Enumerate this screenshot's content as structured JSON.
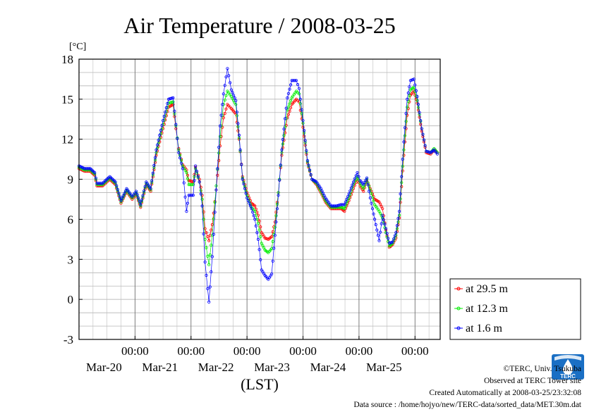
{
  "chart_data": {
    "type": "line",
    "title": "Air Temperature / 2008-03-25",
    "y_unit": "[°C]",
    "xlabel": "(LST)",
    "ylim": [
      -3,
      18
    ],
    "yticks": [
      -3,
      0,
      3,
      6,
      9,
      12,
      15,
      18
    ],
    "x_range_days": [
      0,
      6
    ],
    "x_tick_labels": [
      {
        "time": "00:00",
        "date": "Mar-20",
        "x": 1
      },
      {
        "time": "00:00",
        "date": "Mar-21",
        "x": 2
      },
      {
        "time": "00:00",
        "date": "Mar-22",
        "x": 3
      },
      {
        "time": "00:00",
        "date": "Mar-23",
        "x": 4
      },
      {
        "time": "00:00",
        "date": "Mar-24",
        "x": 5
      },
      {
        "time": "00:00",
        "date": "Mar-25",
        "x": 6
      }
    ],
    "grid": true,
    "legend_position": "bottom-right, outside plot",
    "series": [
      {
        "name": "at 29.5 m",
        "color": "#ff0000",
        "points": [
          [
            0,
            9.8
          ],
          [
            0.1,
            9.6
          ],
          [
            0.2,
            9.6
          ],
          [
            0.28,
            9.3
          ],
          [
            0.32,
            8.5
          ],
          [
            0.42,
            8.5
          ],
          [
            0.55,
            9.0
          ],
          [
            0.65,
            8.6
          ],
          [
            0.75,
            7.2
          ],
          [
            0.85,
            8.1
          ],
          [
            0.95,
            7.5
          ],
          [
            1.02,
            7.9
          ],
          [
            1.1,
            6.9
          ],
          [
            1.2,
            8.6
          ],
          [
            1.28,
            8.1
          ],
          [
            1.38,
            10.8
          ],
          [
            1.5,
            12.8
          ],
          [
            1.6,
            14.4
          ],
          [
            1.68,
            14.6
          ],
          [
            1.73,
            12.8
          ],
          [
            1.78,
            11.3
          ],
          [
            1.85,
            10.1
          ],
          [
            1.92,
            9.7
          ],
          [
            1.96,
            8.9
          ],
          [
            2.04,
            8.8
          ],
          [
            2.08,
            9.9
          ],
          [
            2.15,
            9.0
          ],
          [
            2.2,
            7.8
          ],
          [
            2.25,
            5.3
          ],
          [
            2.32,
            4.4
          ],
          [
            2.38,
            5.6
          ],
          [
            2.45,
            8.2
          ],
          [
            2.52,
            11.5
          ],
          [
            2.58,
            13.6
          ],
          [
            2.65,
            14.6
          ],
          [
            2.72,
            14.3
          ],
          [
            2.8,
            13.9
          ],
          [
            2.86,
            12.0
          ],
          [
            2.92,
            9.2
          ],
          [
            3.0,
            8.0
          ],
          [
            3.08,
            7.2
          ],
          [
            3.14,
            7.0
          ],
          [
            3.2,
            6.3
          ],
          [
            3.26,
            5.0
          ],
          [
            3.32,
            4.6
          ],
          [
            3.38,
            4.5
          ],
          [
            3.44,
            4.7
          ],
          [
            3.5,
            5.8
          ],
          [
            3.56,
            8.0
          ],
          [
            3.62,
            10.8
          ],
          [
            3.72,
            13.6
          ],
          [
            3.8,
            14.6
          ],
          [
            3.88,
            15.0
          ],
          [
            3.93,
            14.8
          ],
          [
            4.0,
            12.9
          ],
          [
            4.08,
            10.2
          ],
          [
            4.16,
            9.0
          ],
          [
            4.24,
            8.6
          ],
          [
            4.32,
            8.0
          ],
          [
            4.4,
            7.3
          ],
          [
            4.5,
            6.8
          ],
          [
            4.6,
            6.8
          ],
          [
            4.68,
            6.8
          ],
          [
            4.74,
            6.6
          ],
          [
            4.82,
            7.4
          ],
          [
            4.9,
            8.3
          ],
          [
            4.97,
            9.0
          ],
          [
            5.02,
            8.5
          ],
          [
            5.08,
            8.1
          ],
          [
            5.14,
            8.9
          ],
          [
            5.2,
            8.3
          ],
          [
            5.28,
            7.5
          ],
          [
            5.36,
            7.3
          ],
          [
            5.42,
            6.8
          ],
          [
            5.48,
            5.2
          ],
          [
            5.54,
            3.9
          ],
          [
            5.6,
            4.1
          ],
          [
            5.66,
            4.6
          ],
          [
            5.72,
            6.1
          ],
          [
            5.8,
            10.8
          ],
          [
            5.86,
            13.8
          ],
          [
            5.92,
            15.3
          ],
          [
            5.98,
            15.6
          ],
          [
            6.04,
            14.7
          ],
          [
            6.12,
            12.6
          ],
          [
            6.2,
            11.0
          ],
          [
            6.28,
            10.9
          ],
          [
            6.34,
            11.2
          ],
          [
            6.4,
            11.0
          ]
        ]
      },
      {
        "name": "at 12.3 m",
        "color": "#00ee00",
        "points": [
          [
            0,
            9.9
          ],
          [
            0.1,
            9.7
          ],
          [
            0.2,
            9.7
          ],
          [
            0.28,
            9.4
          ],
          [
            0.32,
            8.6
          ],
          [
            0.42,
            8.6
          ],
          [
            0.55,
            9.1
          ],
          [
            0.65,
            8.7
          ],
          [
            0.75,
            7.3
          ],
          [
            0.85,
            8.2
          ],
          [
            0.95,
            7.6
          ],
          [
            1.02,
            8.0
          ],
          [
            1.1,
            7.0
          ],
          [
            1.2,
            8.7
          ],
          [
            1.28,
            8.2
          ],
          [
            1.38,
            11.0
          ],
          [
            1.5,
            13.1
          ],
          [
            1.6,
            14.7
          ],
          [
            1.68,
            14.8
          ],
          [
            1.73,
            13.0
          ],
          [
            1.78,
            11.2
          ],
          [
            1.85,
            10.0
          ],
          [
            1.92,
            9.5
          ],
          [
            1.96,
            8.6
          ],
          [
            2.04,
            8.6
          ],
          [
            2.08,
            9.8
          ],
          [
            2.15,
            8.8
          ],
          [
            2.2,
            7.5
          ],
          [
            2.25,
            4.5
          ],
          [
            2.32,
            2.6
          ],
          [
            2.38,
            4.8
          ],
          [
            2.45,
            8.5
          ],
          [
            2.52,
            12.2
          ],
          [
            2.58,
            14.6
          ],
          [
            2.65,
            15.6
          ],
          [
            2.72,
            15.2
          ],
          [
            2.8,
            14.6
          ],
          [
            2.86,
            12.1
          ],
          [
            2.92,
            9.1
          ],
          [
            3.0,
            7.8
          ],
          [
            3.08,
            6.9
          ],
          [
            3.14,
            6.6
          ],
          [
            3.2,
            5.7
          ],
          [
            3.26,
            4.2
          ],
          [
            3.32,
            3.7
          ],
          [
            3.38,
            3.5
          ],
          [
            3.44,
            3.8
          ],
          [
            3.5,
            5.4
          ],
          [
            3.56,
            8.0
          ],
          [
            3.62,
            11.0
          ],
          [
            3.72,
            14.2
          ],
          [
            3.8,
            15.1
          ],
          [
            3.88,
            15.6
          ],
          [
            3.93,
            15.4
          ],
          [
            4.0,
            13.2
          ],
          [
            4.08,
            10.3
          ],
          [
            4.16,
            9.0
          ],
          [
            4.24,
            8.7
          ],
          [
            4.32,
            8.1
          ],
          [
            4.4,
            7.4
          ],
          [
            4.5,
            6.9
          ],
          [
            4.6,
            6.9
          ],
          [
            4.68,
            6.9
          ],
          [
            4.74,
            6.8
          ],
          [
            4.82,
            7.6
          ],
          [
            4.9,
            8.6
          ],
          [
            4.97,
            9.2
          ],
          [
            5.02,
            8.7
          ],
          [
            5.08,
            8.3
          ],
          [
            5.14,
            9.0
          ],
          [
            5.2,
            8.2
          ],
          [
            5.28,
            7.1
          ],
          [
            5.36,
            6.6
          ],
          [
            5.42,
            6.1
          ],
          [
            5.48,
            5.0
          ],
          [
            5.54,
            4.0
          ],
          [
            5.6,
            4.2
          ],
          [
            5.66,
            4.8
          ],
          [
            5.72,
            6.3
          ],
          [
            5.8,
            11.2
          ],
          [
            5.86,
            14.4
          ],
          [
            5.92,
            15.7
          ],
          [
            5.98,
            15.9
          ],
          [
            6.04,
            14.9
          ],
          [
            6.12,
            12.8
          ],
          [
            6.2,
            11.1
          ],
          [
            6.28,
            11.0
          ],
          [
            6.34,
            11.3
          ],
          [
            6.4,
            11.0
          ]
        ]
      },
      {
        "name": "at 1.6 m",
        "color": "#0000ff",
        "points": [
          [
            0,
            10.0
          ],
          [
            0.1,
            9.8
          ],
          [
            0.2,
            9.8
          ],
          [
            0.28,
            9.5
          ],
          [
            0.32,
            8.7
          ],
          [
            0.42,
            8.7
          ],
          [
            0.55,
            9.2
          ],
          [
            0.65,
            8.8
          ],
          [
            0.75,
            7.4
          ],
          [
            0.85,
            8.3
          ],
          [
            0.95,
            7.7
          ],
          [
            1.02,
            8.1
          ],
          [
            1.1,
            7.1
          ],
          [
            1.2,
            8.8
          ],
          [
            1.28,
            8.3
          ],
          [
            1.38,
            11.2
          ],
          [
            1.5,
            13.4
          ],
          [
            1.6,
            15.0
          ],
          [
            1.68,
            15.1
          ],
          [
            1.73,
            13.1
          ],
          [
            1.78,
            11.0
          ],
          [
            1.85,
            9.8
          ],
          [
            1.92,
            6.6
          ],
          [
            1.96,
            7.8
          ],
          [
            2.04,
            7.8
          ],
          [
            2.08,
            10.0
          ],
          [
            2.15,
            8.8
          ],
          [
            2.2,
            7.0
          ],
          [
            2.25,
            2.8
          ],
          [
            2.32,
            -0.2
          ],
          [
            2.38,
            3.2
          ],
          [
            2.45,
            8.2
          ],
          [
            2.52,
            13.0
          ],
          [
            2.58,
            15.4
          ],
          [
            2.65,
            17.3
          ],
          [
            2.72,
            15.7
          ],
          [
            2.8,
            14.9
          ],
          [
            2.86,
            12.3
          ],
          [
            2.92,
            9.0
          ],
          [
            3.0,
            7.6
          ],
          [
            3.08,
            6.8
          ],
          [
            3.14,
            6.0
          ],
          [
            3.2,
            4.5
          ],
          [
            3.26,
            2.2
          ],
          [
            3.32,
            1.8
          ],
          [
            3.38,
            1.5
          ],
          [
            3.44,
            1.9
          ],
          [
            3.5,
            4.8
          ],
          [
            3.56,
            7.8
          ],
          [
            3.62,
            11.2
          ],
          [
            3.72,
            15.1
          ],
          [
            3.8,
            16.4
          ],
          [
            3.88,
            16.4
          ],
          [
            3.93,
            15.8
          ],
          [
            4.0,
            13.4
          ],
          [
            4.08,
            10.4
          ],
          [
            4.16,
            9.0
          ],
          [
            4.24,
            8.8
          ],
          [
            4.32,
            8.3
          ],
          [
            4.4,
            7.6
          ],
          [
            4.5,
            7.0
          ],
          [
            4.6,
            7.0
          ],
          [
            4.68,
            7.1
          ],
          [
            4.74,
            7.1
          ],
          [
            4.82,
            7.9
          ],
          [
            4.9,
            8.8
          ],
          [
            4.97,
            9.5
          ],
          [
            5.02,
            8.9
          ],
          [
            5.08,
            8.6
          ],
          [
            5.14,
            9.1
          ],
          [
            5.2,
            7.6
          ],
          [
            5.28,
            6.0
          ],
          [
            5.36,
            4.4
          ],
          [
            5.42,
            6.3
          ],
          [
            5.48,
            5.3
          ],
          [
            5.54,
            4.2
          ],
          [
            5.6,
            4.3
          ],
          [
            5.66,
            5.0
          ],
          [
            5.72,
            6.6
          ],
          [
            5.8,
            11.8
          ],
          [
            5.86,
            15.0
          ],
          [
            5.92,
            16.4
          ],
          [
            5.98,
            16.5
          ],
          [
            6.04,
            15.2
          ],
          [
            6.12,
            12.8
          ],
          [
            6.2,
            11.1
          ],
          [
            6.28,
            11.0
          ],
          [
            6.34,
            11.2
          ],
          [
            6.4,
            10.9
          ]
        ]
      }
    ]
  },
  "credits": {
    "copyright": "©TERC, Univ. Tsukuba",
    "observed": "Observed at TERC Tower site",
    "created": "Created Automatically at 2008-03-25/23:32:08",
    "source": "Data source : /home/hojyo/new/TERC-data/sorted_data/MET.30m.dat",
    "logo_text": "TERC",
    "logo_color": "#1a6fc4"
  }
}
